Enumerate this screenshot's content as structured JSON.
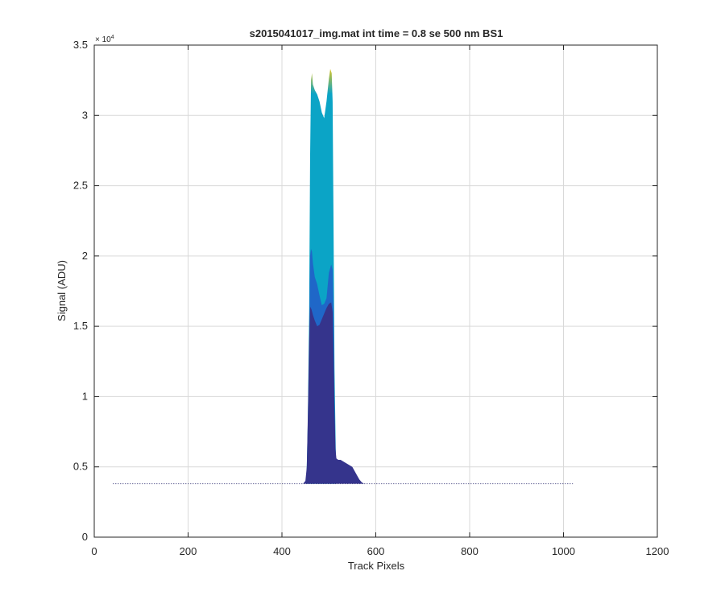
{
  "chart_data": {
    "type": "area",
    "title": "s2015041017_img.mat int time = 0.8 se  500 nm BS1",
    "xlabel": "Track Pixels",
    "ylabel": "Signal (ADU)",
    "xlim": [
      0,
      1200
    ],
    "ylim": [
      0,
      35000
    ],
    "xticks": [
      0,
      200,
      400,
      600,
      800,
      1000,
      1200
    ],
    "xtick_labels": [
      "0",
      "200",
      "400",
      "600",
      "800",
      "1000",
      "1200"
    ],
    "yticks": [
      0,
      5000,
      10000,
      15000,
      20000,
      25000,
      30000,
      35000
    ],
    "ytick_labels": [
      "0",
      "0.5",
      "1",
      "1.5",
      "2",
      "2.5",
      "3",
      "3.5"
    ],
    "y_exponent_label": "× 10",
    "y_exponent_power": "4",
    "grid": true,
    "colors": {
      "high_band": "#0ba4c6",
      "mid_band": "#1f67c8",
      "low_band": "#35348c",
      "peak_tint": "#dcc523",
      "baseline": "#2b2b6e",
      "grid": "#d9d9d9",
      "axes": "#262626"
    },
    "series": [
      {
        "x": [
          452,
          455,
          458,
          460,
          462,
          464,
          466,
          470,
          475,
          480,
          485,
          490,
          495,
          500,
          503,
          506,
          508,
          510,
          512,
          515
        ],
        "values": [
          3800,
          8000,
          16000,
          27000,
          32500,
          33000,
          32200,
          31800,
          31500,
          31000,
          30200,
          29800,
          31000,
          32600,
          33300,
          33000,
          31000,
          22000,
          12000,
          5500
        ]
      },
      {
        "x": [
          452,
          455,
          458,
          460,
          462,
          464,
          466,
          470,
          475,
          480,
          485,
          490,
          495,
          500,
          505,
          508,
          510,
          512,
          515
        ],
        "values": [
          3800,
          7000,
          13000,
          20000,
          20500,
          20300,
          19500,
          18500,
          18000,
          17200,
          16500,
          16600,
          17000,
          18800,
          19400,
          19000,
          16000,
          9500,
          5200
        ]
      },
      {
        "x": [
          445,
          450,
          453,
          456,
          458,
          460,
          463,
          466,
          470,
          475,
          480,
          485,
          490,
          495,
          500,
          505,
          508,
          510,
          512,
          514,
          516,
          520,
          525,
          530,
          535,
          540,
          545,
          550,
          555,
          560,
          565,
          570,
          575,
          580,
          585
        ],
        "values": [
          3800,
          4000,
          5000,
          10000,
          14000,
          16400,
          16200,
          15800,
          15400,
          15000,
          15100,
          15500,
          15900,
          16300,
          16600,
          16700,
          16000,
          13000,
          9000,
          6300,
          5600,
          5500,
          5500,
          5400,
          5300,
          5200,
          5100,
          5000,
          4700,
          4400,
          4100,
          3900,
          3800,
          3800,
          3800
        ]
      },
      {
        "x": [
          40,
          1020
        ],
        "values": [
          3800,
          3800
        ]
      }
    ]
  }
}
